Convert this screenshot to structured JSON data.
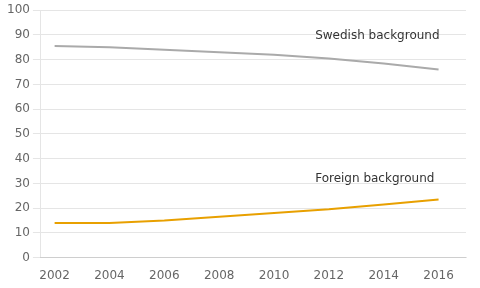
{
  "chart_data": {
    "type": "line",
    "x": [
      2002,
      2004,
      2006,
      2008,
      2010,
      2012,
      2014,
      2016
    ],
    "series": [
      {
        "name": "Swedish background",
        "color": "#aaaaaa",
        "values": [
          85.5,
          85.0,
          84.0,
          83.0,
          82.0,
          80.5,
          78.5,
          76.0
        ]
      },
      {
        "name": "Foreign background",
        "color": "#E8A000",
        "values": [
          14.0,
          14.0,
          15.0,
          16.5,
          18.0,
          19.5,
          21.5,
          23.5
        ]
      }
    ],
    "xlim": [
      2001.5,
      2017.0
    ],
    "xticks": [
      2002,
      2004,
      2006,
      2008,
      2010,
      2012,
      2014,
      2016
    ],
    "ylim": [
      0,
      100
    ],
    "yticks": [
      0,
      10,
      20,
      30,
      40,
      50,
      60,
      70,
      80,
      90,
      100
    ],
    "grid": "y",
    "annotations": [
      {
        "text": "Swedish background",
        "x": 2011.5,
        "y": 87.0
      },
      {
        "text": "Foreign background",
        "x": 2011.5,
        "y": 29.5
      }
    ]
  }
}
